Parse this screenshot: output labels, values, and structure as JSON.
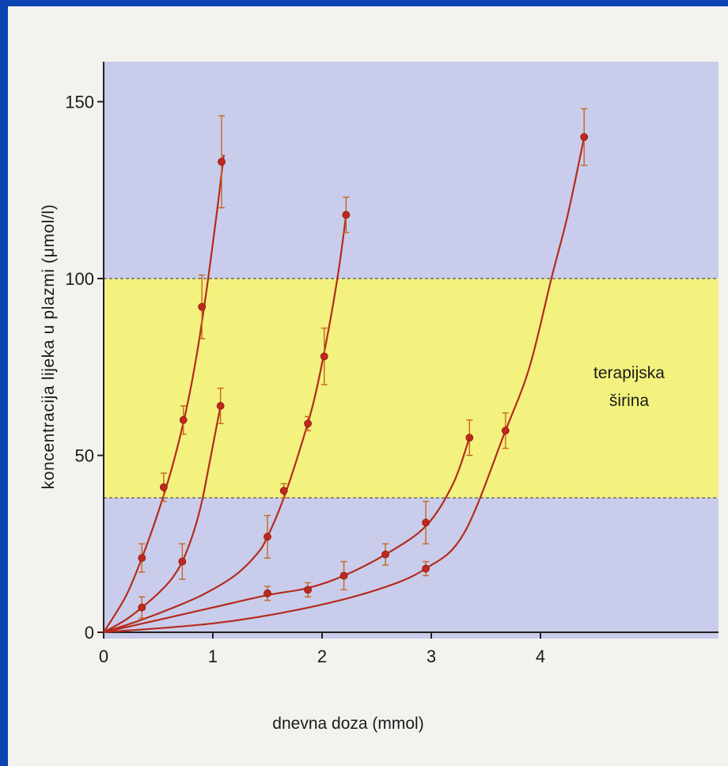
{
  "colors": {
    "slide_border": "#0b43b3",
    "outer_band": "#c9cdeb",
    "therapeutic_band": "#f3f27e",
    "curve": "#b52a1e",
    "point": "#c0281b",
    "errorbar": "#c8641e"
  },
  "chart_data": {
    "type": "line",
    "title": "",
    "xlabel": "dnevna doza (mmol)",
    "ylabel": "koncentracija lijeka u plazmi (μmol/l)",
    "xlim": [
      0,
      4.6
    ],
    "ylim": [
      0,
      160
    ],
    "x_ticks": [
      "0",
      "1",
      "2",
      "3",
      "4"
    ],
    "y_ticks": [
      "0",
      "50",
      "100",
      "150"
    ],
    "therapeutic_range": {
      "low": 38,
      "high": 100,
      "label_line1": "terapijska",
      "label_line2": "širina"
    },
    "series": [
      {
        "x": [
          0,
          0.35,
          0.55,
          0.73,
          0.9,
          1.08
        ],
        "y": [
          0,
          21,
          41,
          60,
          92,
          133
        ],
        "err": [
          0,
          4,
          4,
          4,
          9,
          13
        ],
        "curve": [
          [
            0,
            0
          ],
          [
            0.2,
            10
          ],
          [
            0.35,
            21
          ],
          [
            0.5,
            34
          ],
          [
            0.63,
            47
          ],
          [
            0.75,
            62
          ],
          [
            0.85,
            78
          ],
          [
            0.93,
            94
          ],
          [
            1.0,
            110
          ],
          [
            1.05,
            122
          ],
          [
            1.1,
            135
          ]
        ]
      },
      {
        "x": [
          0,
          0.35,
          0.72,
          1.07
        ],
        "y": [
          0,
          7,
          20,
          64
        ],
        "err": [
          0,
          3,
          5,
          5
        ],
        "curve": [
          [
            0,
            0
          ],
          [
            0.2,
            3.5
          ],
          [
            0.35,
            7
          ],
          [
            0.5,
            11
          ],
          [
            0.62,
            15
          ],
          [
            0.72,
            20
          ],
          [
            0.82,
            28
          ],
          [
            0.9,
            37
          ],
          [
            0.97,
            48
          ],
          [
            1.02,
            56
          ],
          [
            1.07,
            64
          ]
        ]
      },
      {
        "x": [
          0,
          1.5,
          1.65,
          1.87,
          2.02,
          2.22
        ],
        "y": [
          0,
          27,
          40,
          59,
          78,
          118
        ],
        "err": [
          0,
          6,
          2,
          2,
          8,
          5
        ],
        "curve": [
          [
            0,
            0
          ],
          [
            0.3,
            3
          ],
          [
            0.6,
            6.5
          ],
          [
            0.9,
            10.5
          ],
          [
            1.2,
            16
          ],
          [
            1.4,
            22
          ],
          [
            1.5,
            27
          ],
          [
            1.65,
            38
          ],
          [
            1.8,
            52
          ],
          [
            1.93,
            66
          ],
          [
            2.05,
            84
          ],
          [
            2.15,
            102
          ],
          [
            2.22,
            118
          ]
        ]
      },
      {
        "x": [
          0,
          1.5,
          1.87,
          2.2,
          2.58,
          2.95,
          3.35
        ],
        "y": [
          0,
          11,
          12,
          16,
          22,
          31,
          55
        ],
        "err": [
          0,
          2,
          2,
          4,
          3,
          6,
          5
        ],
        "curve": [
          [
            0,
            0
          ],
          [
            0.5,
            3.5
          ],
          [
            1.0,
            7
          ],
          [
            1.5,
            10.5
          ],
          [
            1.87,
            12.5
          ],
          [
            2.2,
            16
          ],
          [
            2.58,
            22
          ],
          [
            2.95,
            30
          ],
          [
            3.2,
            42
          ],
          [
            3.35,
            55
          ]
        ]
      },
      {
        "x": [
          0,
          2.95,
          3.68,
          4.4
        ],
        "y": [
          0,
          18,
          57,
          140
        ],
        "err": [
          0,
          2,
          5,
          8
        ],
        "curve": [
          [
            0,
            0
          ],
          [
            1.0,
            2.5
          ],
          [
            1.8,
            6.5
          ],
          [
            2.5,
            12
          ],
          [
            2.95,
            18
          ],
          [
            3.3,
            28
          ],
          [
            3.68,
            57
          ],
          [
            3.9,
            75
          ],
          [
            4.1,
            100
          ],
          [
            4.25,
            118
          ],
          [
            4.4,
            140
          ]
        ]
      }
    ]
  }
}
